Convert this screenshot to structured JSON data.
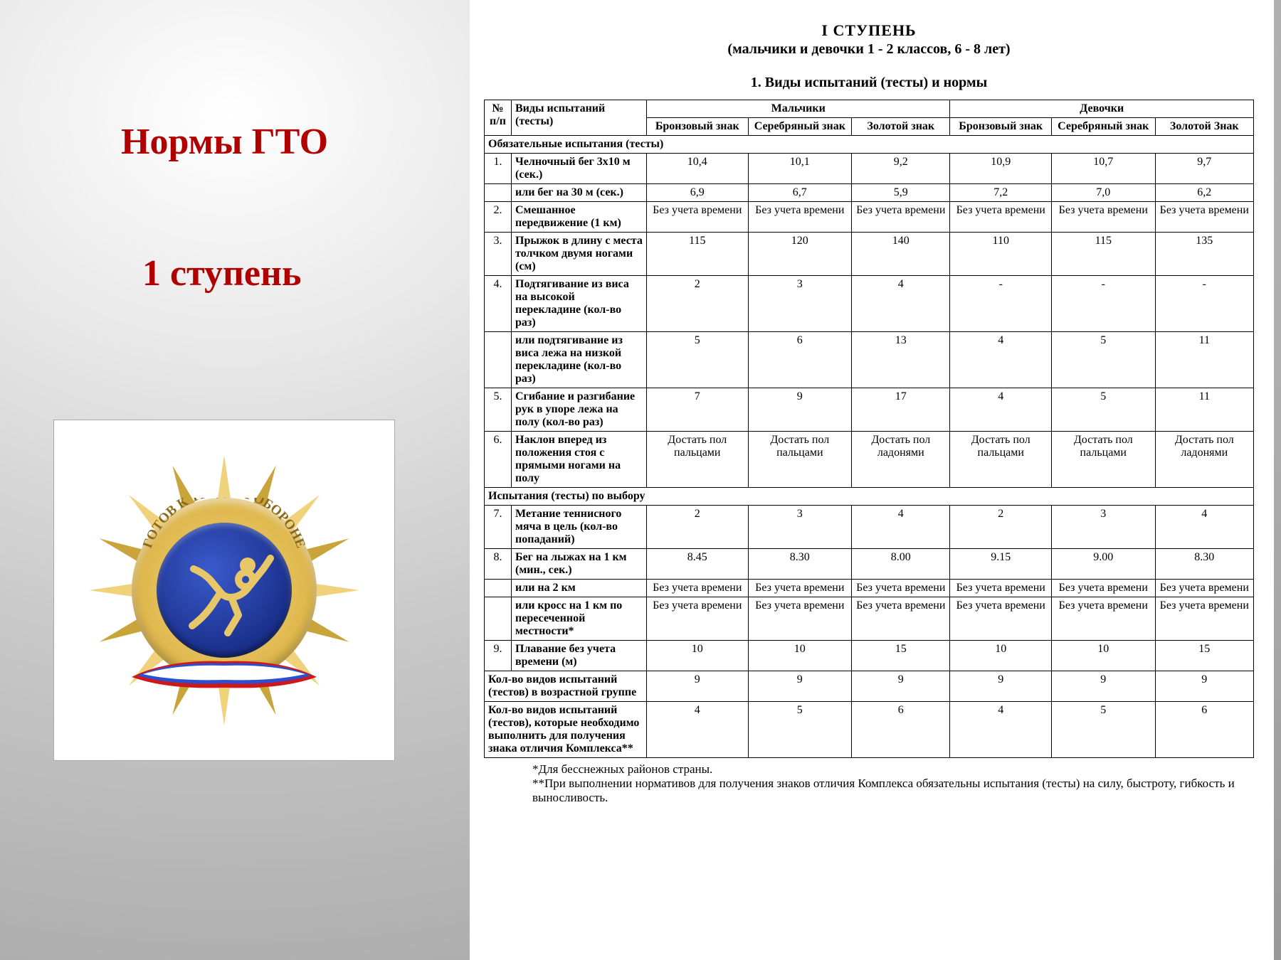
{
  "left": {
    "title1": "Нормы ГТО",
    "title2": "1 ступень",
    "badge": {
      "arc_text": "ГОТОВ К ТРУДУ И ОБОРОНЕ",
      "ray_count": 16,
      "ray_colors_alternating": [
        "#f0d27a",
        "#c8a43a"
      ],
      "ribbon_colors": [
        "#ffffff",
        "#2a4fd0",
        "#d01818"
      ],
      "center_color": "#1a2f8a",
      "gold_rim_color": "#e0b94f"
    }
  },
  "doc": {
    "header_level": "I СТУПЕНЬ",
    "header_sub": "(мальчики и девочки 1 - 2 классов, 6 - 8 лет)",
    "section_title": "1. Виды испытаний (тесты) и нормы",
    "table": {
      "head": {
        "num": "№ п/п",
        "test": "Виды испытаний (тесты)",
        "boys": "Мальчики",
        "girls": "Девочки",
        "bronze": "Бронзовый знак",
        "silver": "Серебряный знак",
        "gold_m": "Золотой знак",
        "gold_f": "Золотой Знак"
      },
      "section_required": "Обязательные испытания (тесты)",
      "section_optional": "Испытания (тесты) по выбору",
      "rows_required": [
        {
          "num": "1.",
          "name": "Челночный бег 3х10 м (сек.)",
          "v": [
            "10,4",
            "10,1",
            "9,2",
            "10,9",
            "10,7",
            "9,7"
          ]
        },
        {
          "num": "",
          "name": "или бег на 30 м (сек.)",
          "v": [
            "6,9",
            "6,7",
            "5,9",
            "7,2",
            "7,0",
            "6,2"
          ]
        },
        {
          "num": "2.",
          "name": "Смешанное передвижение (1 км)",
          "v": [
            "Без учета времени",
            "Без учета времени",
            "Без учета времени",
            "Без учета времени",
            "Без учета времени",
            "Без учета времени"
          ]
        },
        {
          "num": "3.",
          "name": "Прыжок в длину с места толчком двумя ногами (см)",
          "v": [
            "115",
            "120",
            "140",
            "110",
            "115",
            "135"
          ]
        },
        {
          "num": "4.",
          "name": "Подтягивание из виса на высокой перекладине (кол-во раз)",
          "v": [
            "2",
            "3",
            "4",
            "-",
            "-",
            "-"
          ]
        },
        {
          "num": "",
          "name": "или подтягивание из виса лежа на низкой перекладине (кол-во раз)",
          "v": [
            "5",
            "6",
            "13",
            "4",
            "5",
            "11"
          ]
        },
        {
          "num": "5.",
          "name": "Сгибание и разгибание рук в упоре лежа на полу (кол-во раз)",
          "v": [
            "7",
            "9",
            "17",
            "4",
            "5",
            "11"
          ]
        },
        {
          "num": "6.",
          "name": "Наклон вперед из положения стоя с прямыми ногами на полу",
          "v": [
            "Достать пол пальцами",
            "Достать пол пальцами",
            "Достать пол ладонями",
            "Достать пол пальцами",
            "Достать пол пальцами",
            "Достать пол ладонями"
          ]
        }
      ],
      "rows_optional": [
        {
          "num": "7.",
          "name": "Метание теннисного мяча в цель (кол-во попаданий)",
          "v": [
            "2",
            "3",
            "4",
            "2",
            "3",
            "4"
          ]
        },
        {
          "num": "8.",
          "name": "Бег на лыжах на 1 км (мин., сек.)",
          "v": [
            "8.45",
            "8.30",
            "8.00",
            "9.15",
            "9.00",
            "8.30"
          ]
        },
        {
          "num": "",
          "name": "или на 2 км",
          "v": [
            "Без учета времени",
            "Без учета времени",
            "Без учета времени",
            "Без учета времени",
            "Без учета времени",
            "Без учета времени"
          ]
        },
        {
          "num": "",
          "name": "или кросс на 1 км по пересеченной местности*",
          "v": [
            "Без учета времени",
            "Без учета времени",
            "Без учета времени",
            "Без учета времени",
            "Без учета времени",
            "Без учета времени"
          ]
        },
        {
          "num": "9.",
          "name": "Плавание без учета времени (м)",
          "v": [
            "10",
            "10",
            "15",
            "10",
            "10",
            "15"
          ]
        }
      ],
      "summary": [
        {
          "name": "Кол-во видов испытаний (тестов) в возрастной группе",
          "v": [
            "9",
            "9",
            "9",
            "9",
            "9",
            "9"
          ]
        },
        {
          "name": "Кол-во видов испытаний (тестов), которые необходимо выполнить для получения знака отличия Комплекса**",
          "v": [
            "4",
            "5",
            "6",
            "4",
            "5",
            "6"
          ]
        }
      ]
    },
    "footnote1": "*Для бесснежных районов страны.",
    "footnote2": "**При выполнении нормативов для получения знаков отличия Комплекса обязательны испытания (тесты) на силу, быстроту, гибкость и выносливость."
  }
}
